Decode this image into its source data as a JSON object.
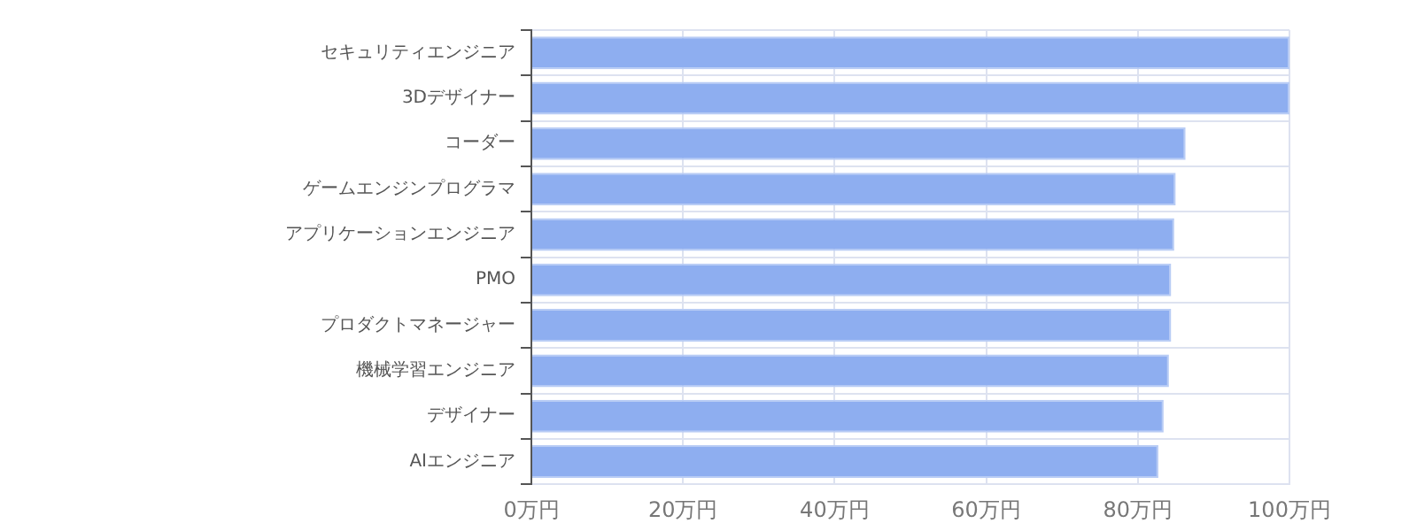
{
  "chart_data": {
    "type": "bar",
    "orientation": "horizontal",
    "categories": [
      "セキュリティエンジニア",
      "3Dデザイナー",
      "コーダー",
      "ゲームエンジンプログラマ",
      "アプリケーションエンジニア",
      "PMO",
      "プロダクトマネージャー",
      "機械学習エンジニア",
      "デザイナー",
      "AIエンジニア"
    ],
    "values": [
      100,
      100,
      86.3,
      85.0,
      84.8,
      84.4,
      84.4,
      84.1,
      83.4,
      82.7
    ],
    "color": "#8eaef0",
    "xlim": [
      0,
      100
    ],
    "xticks": [
      {
        "value": 0,
        "label": "0万円"
      },
      {
        "value": 20,
        "label": "20万円"
      },
      {
        "value": 40,
        "label": "40万円"
      },
      {
        "value": 60,
        "label": "60万円"
      },
      {
        "value": 80,
        "label": "80万円"
      },
      {
        "value": 100,
        "label": "100万円"
      }
    ],
    "grid": true,
    "legend": false
  }
}
